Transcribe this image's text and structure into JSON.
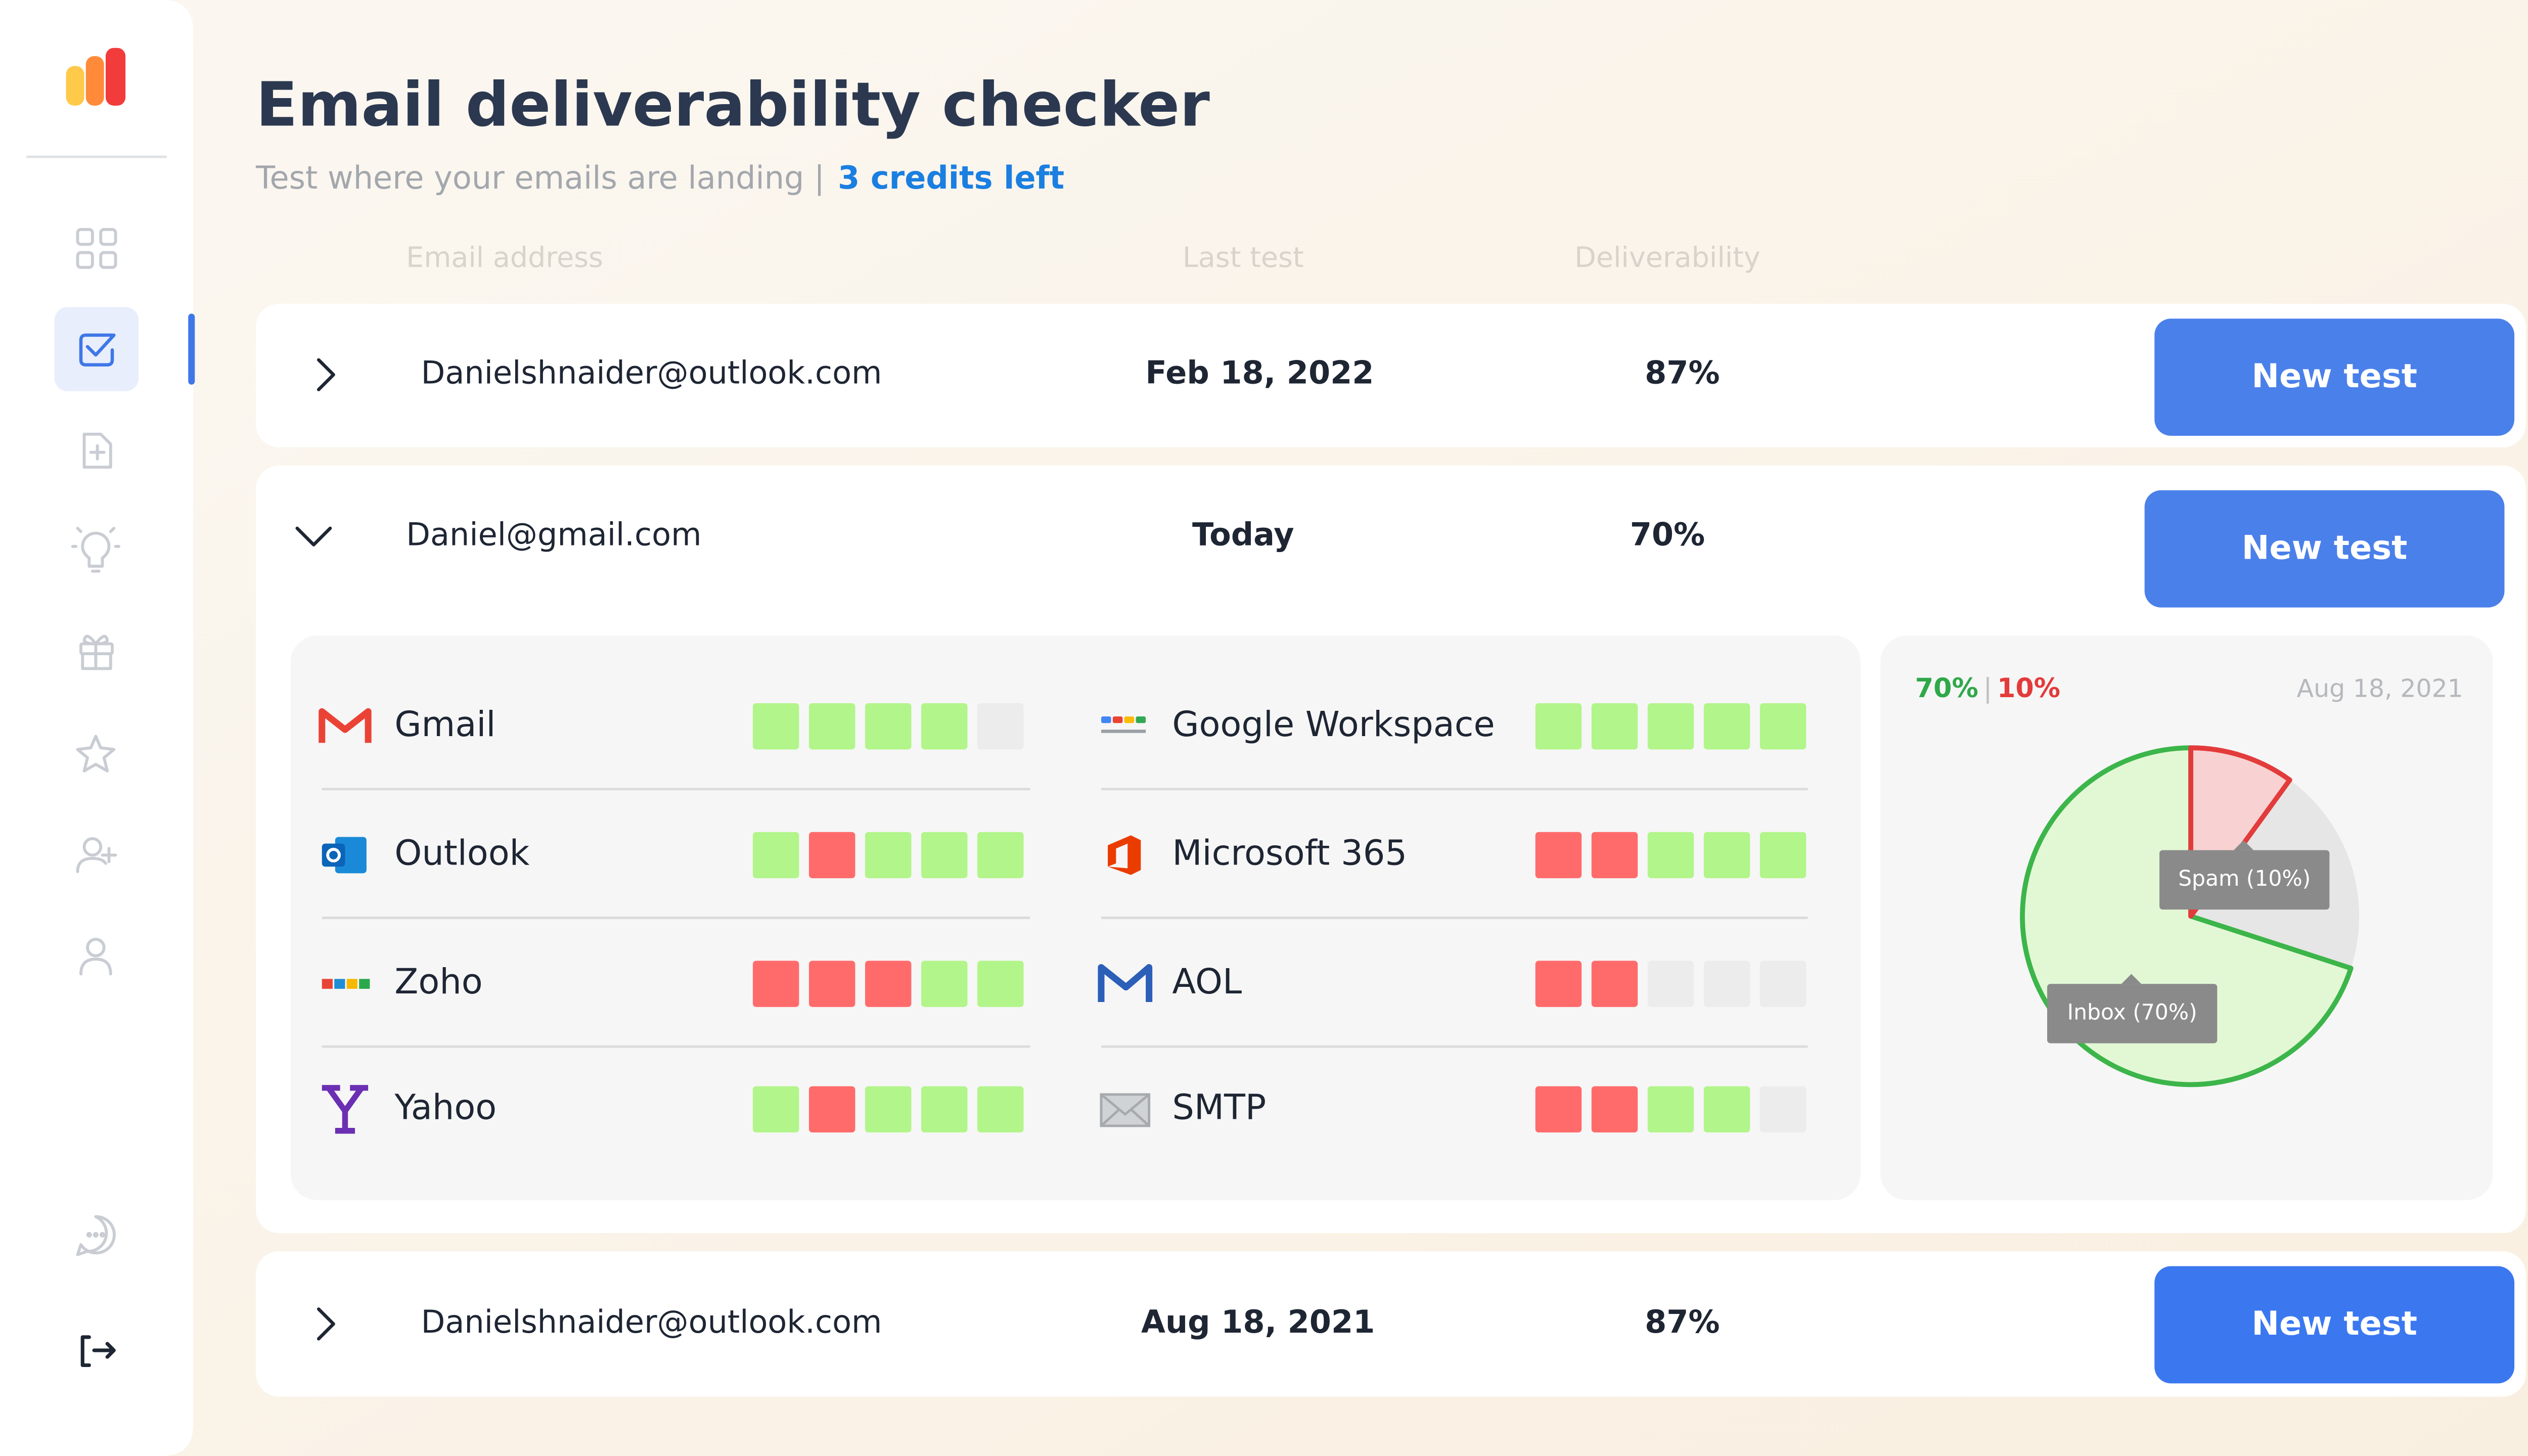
{
  "header": {
    "title": "Email deliverability checker",
    "subtitle": "Test where your emails are landing |",
    "credits": "3 credits left"
  },
  "columns": [
    "Email address",
    "Last test",
    "Deliverability"
  ],
  "rows": [
    {
      "email": "Danielshnaider@outlook.com",
      "last_test": "Feb 18, 2022",
      "deliverability": "87%",
      "button": "New test"
    },
    {
      "email": "Daniel@gmail.com",
      "last_test": "Today",
      "deliverability": "70%",
      "button": "New test"
    },
    {
      "email": "Danielshnaider@outlook.com",
      "last_test": "Aug 18, 2021",
      "deliverability": "87%",
      "button": "New test"
    }
  ],
  "details": {
    "providers": [
      {
        "name": "Gmail",
        "results": [
          "#b2f58a",
          "#b2f58a",
          "#b2f58a",
          "#b2f58a",
          "#ececec"
        ]
      },
      {
        "name": "Outlook",
        "results": [
          "#b2f58a",
          "#ff6b6b",
          "#b2f58a",
          "#b2f58a",
          "#b2f58a"
        ]
      },
      {
        "name": "Zoho",
        "results": [
          "#ff6b6b",
          "#ff6b6b",
          "#ff6b6b",
          "#b2f58a",
          "#b2f58a"
        ]
      },
      {
        "name": "Yahoo",
        "results": [
          "#b2f58a",
          "#ff6b6b",
          "#b2f58a",
          "#b2f58a",
          "#b2f58a"
        ]
      },
      {
        "name": "Google Workspace",
        "results": [
          "#b2f58a",
          "#b2f58a",
          "#b2f58a",
          "#b2f58a",
          "#b2f58a"
        ]
      },
      {
        "name": "Microsoft 365",
        "results": [
          "#ff6b6b",
          "#ff6b6b",
          "#b2f58a",
          "#b2f58a",
          "#b2f58a"
        ]
      },
      {
        "name": "AOL",
        "results": [
          "#ff6b6b",
          "#ff6b6b",
          "#ececec",
          "#ececec",
          "#ececec"
        ]
      },
      {
        "name": "SMTP",
        "results": [
          "#ff6b6b",
          "#ff6b6b",
          "#b2f58a",
          "#b2f58a",
          "#ececec"
        ]
      }
    ],
    "summary": {
      "inbox": "70%",
      "separator": "|",
      "spam": "10%",
      "date": "Aug 18, 2021"
    },
    "pie": {
      "values": [
        70,
        10
      ],
      "labels": [
        "Inbox (70%)",
        "Spam (10%)"
      ],
      "fills": [
        "#e2f8d5",
        "#f8d2d2"
      ],
      "strokes": [
        "#3cb54a",
        "#e33b3b"
      ]
    }
  }
}
